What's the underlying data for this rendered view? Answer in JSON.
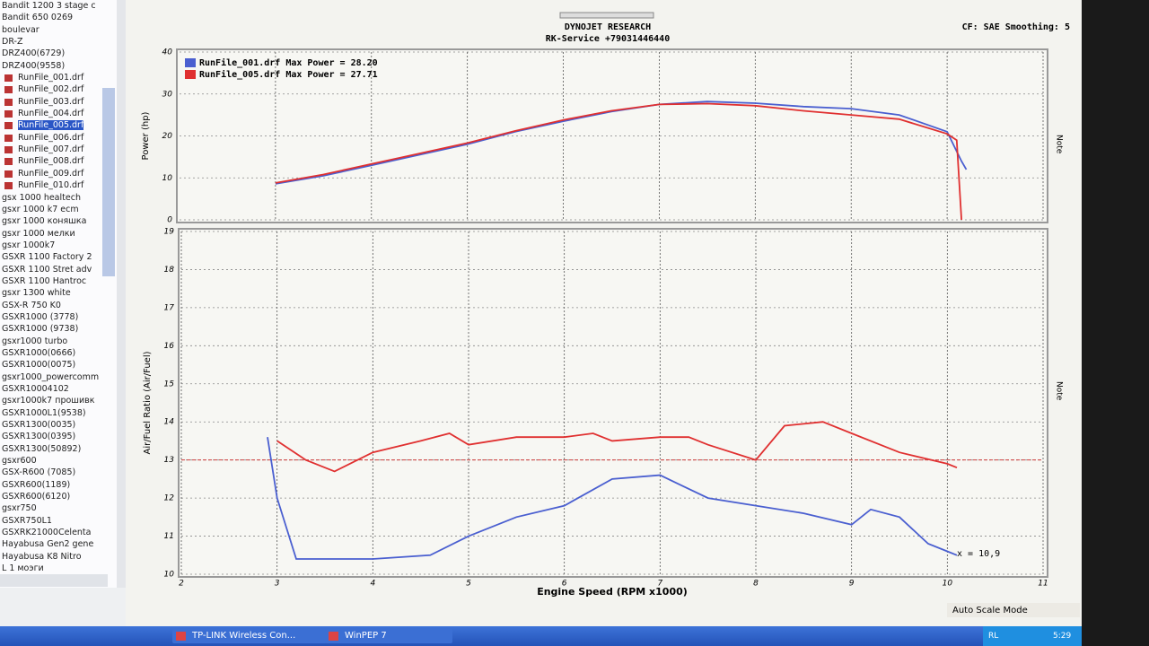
{
  "sidebar": {
    "items": [
      "Bandit 1200 3 stage c",
      "Bandit 650 0269",
      "boulevar",
      "DR-Z",
      "DRZ400(6729)",
      "DRZ400(9558)",
      "RunFile_001.drf",
      "RunFile_002.drf",
      "RunFile_003.drf",
      "RunFile_004.drf",
      "RunFile_005.drf",
      "RunFile_006.drf",
      "RunFile_007.drf",
      "RunFile_008.drf",
      "RunFile_009.drf",
      "RunFile_010.drf",
      "gsx 1000 healtech",
      "gsxr 1000 k7 ecm",
      "gsxr 1000 коняшка",
      "gsxr 1000 мелки",
      "gsxr 1000k7",
      "GSXR 1100 Factory 2",
      "GSXR 1100 Stret adv",
      "GSXR 1100 Hantroc",
      "gsxr 1300 white",
      "GSX-R 750 K0",
      "GSXR1000 (3778)",
      "GSXR1000 (9738)",
      "gsxr1000 turbo",
      "GSXR1000(0666)",
      "GSXR1000(0075)",
      "gsxr1000_powercomm",
      "GSXR10004102",
      "gsxr1000k7 прошивк",
      "GSXR1000L1(9538)",
      "GSXR1300(0035)",
      "GSXR1300(0395)",
      "GSXR1300(50892)",
      "gsxr600",
      "GSX-R600 (7085)",
      "GSXR600(1189)",
      "GSXR600(6120)",
      "gsxr750",
      "GSXR750L1",
      "GSXRK21000Celenta",
      "Hayabusa Gen2 gene",
      "Hayabusa K8 Nitro",
      "L 1 моэги"
    ]
  },
  "header": {
    "title": "DYNOJET RESEARCH",
    "subtitle": "RK-Service +79031446440",
    "settings": "CF: SAE  Smoothing: 5",
    "note_top": "Note",
    "note_bottom": "Note"
  },
  "chart_data": [
    {
      "type": "line",
      "ylabel": "Power (hp)",
      "xlim": [
        2,
        11
      ],
      "ylim": [
        0,
        40
      ],
      "xticks": [
        3,
        4,
        5,
        6,
        7,
        8,
        9,
        10,
        11
      ],
      "yticks": [
        0,
        10,
        20,
        30,
        40
      ],
      "grid": true,
      "legend": "top-left",
      "series": [
        {
          "name": "RunFile_001.drf Max Power = 28.20",
          "color": "#4a5fd0",
          "x": [
            3,
            3.5,
            4,
            4.5,
            5,
            5.5,
            6,
            6.5,
            7,
            7.5,
            8,
            8.5,
            9,
            9.5,
            10,
            10.15,
            10.2
          ],
          "values": [
            8.6,
            10.5,
            13,
            15.5,
            18,
            21,
            23.5,
            25.8,
            27.5,
            28.2,
            27.8,
            27,
            26.5,
            25,
            21,
            14,
            12
          ]
        },
        {
          "name": "RunFile_005.drf Max Power = 27.71",
          "color": "#e03030",
          "x": [
            3,
            3.5,
            4,
            4.5,
            5,
            5.5,
            6,
            6.5,
            7,
            7.5,
            8,
            8.5,
            9,
            9.5,
            10,
            10.1,
            10.15
          ],
          "values": [
            8.8,
            10.8,
            13.3,
            15.8,
            18.3,
            21.2,
            23.8,
            26,
            27.5,
            27.7,
            27.2,
            26,
            25,
            24,
            20.5,
            19,
            0
          ]
        }
      ]
    },
    {
      "type": "line",
      "xlabel": "Engine Speed (RPM x1000)",
      "ylabel": "Air/Fuel Ratio (Air/Fuel)",
      "xlim": [
        2,
        11
      ],
      "ylim": [
        10,
        19
      ],
      "xticks": [
        2,
        3,
        4,
        5,
        6,
        7,
        8,
        9,
        10,
        11
      ],
      "yticks": [
        10,
        11,
        12,
        13,
        14,
        15,
        16,
        17,
        18,
        19
      ],
      "grid": true,
      "reference_line": 13,
      "reference_color": "#d04040",
      "annotation": "x = 10,9",
      "series": [
        {
          "color": "#4a5fd0",
          "x": [
            2.9,
            3,
            3.2,
            4,
            4.6,
            5,
            5.5,
            6,
            6.5,
            7,
            7.5,
            8,
            8.5,
            9,
            9.2,
            9.5,
            9.8,
            10,
            10.1
          ],
          "values": [
            13.6,
            12,
            10.4,
            10.4,
            10.5,
            11,
            11.5,
            11.8,
            12.5,
            12.6,
            12,
            11.8,
            11.6,
            11.3,
            11.7,
            11.5,
            10.8,
            10.6,
            10.5
          ]
        },
        {
          "color": "#e03030",
          "x": [
            3,
            3.3,
            3.6,
            4,
            4.5,
            4.8,
            5,
            5.5,
            6,
            6.3,
            6.5,
            7,
            7.3,
            7.5,
            8,
            8.3,
            8.7,
            9,
            9.5,
            10,
            10.1
          ],
          "values": [
            13.5,
            13,
            12.7,
            13.2,
            13.5,
            13.7,
            13.4,
            13.6,
            13.6,
            13.7,
            13.5,
            13.6,
            13.6,
            13.4,
            13,
            13.9,
            14,
            13.7,
            13.2,
            12.9,
            12.8
          ]
        }
      ]
    }
  ],
  "footer": {
    "status": "Auto Scale Mode"
  },
  "taskbar": {
    "tasks": [
      "TP-LINK Wireless Con...",
      "WinPEP 7"
    ],
    "lang": "RL",
    "clock": "5:29"
  }
}
